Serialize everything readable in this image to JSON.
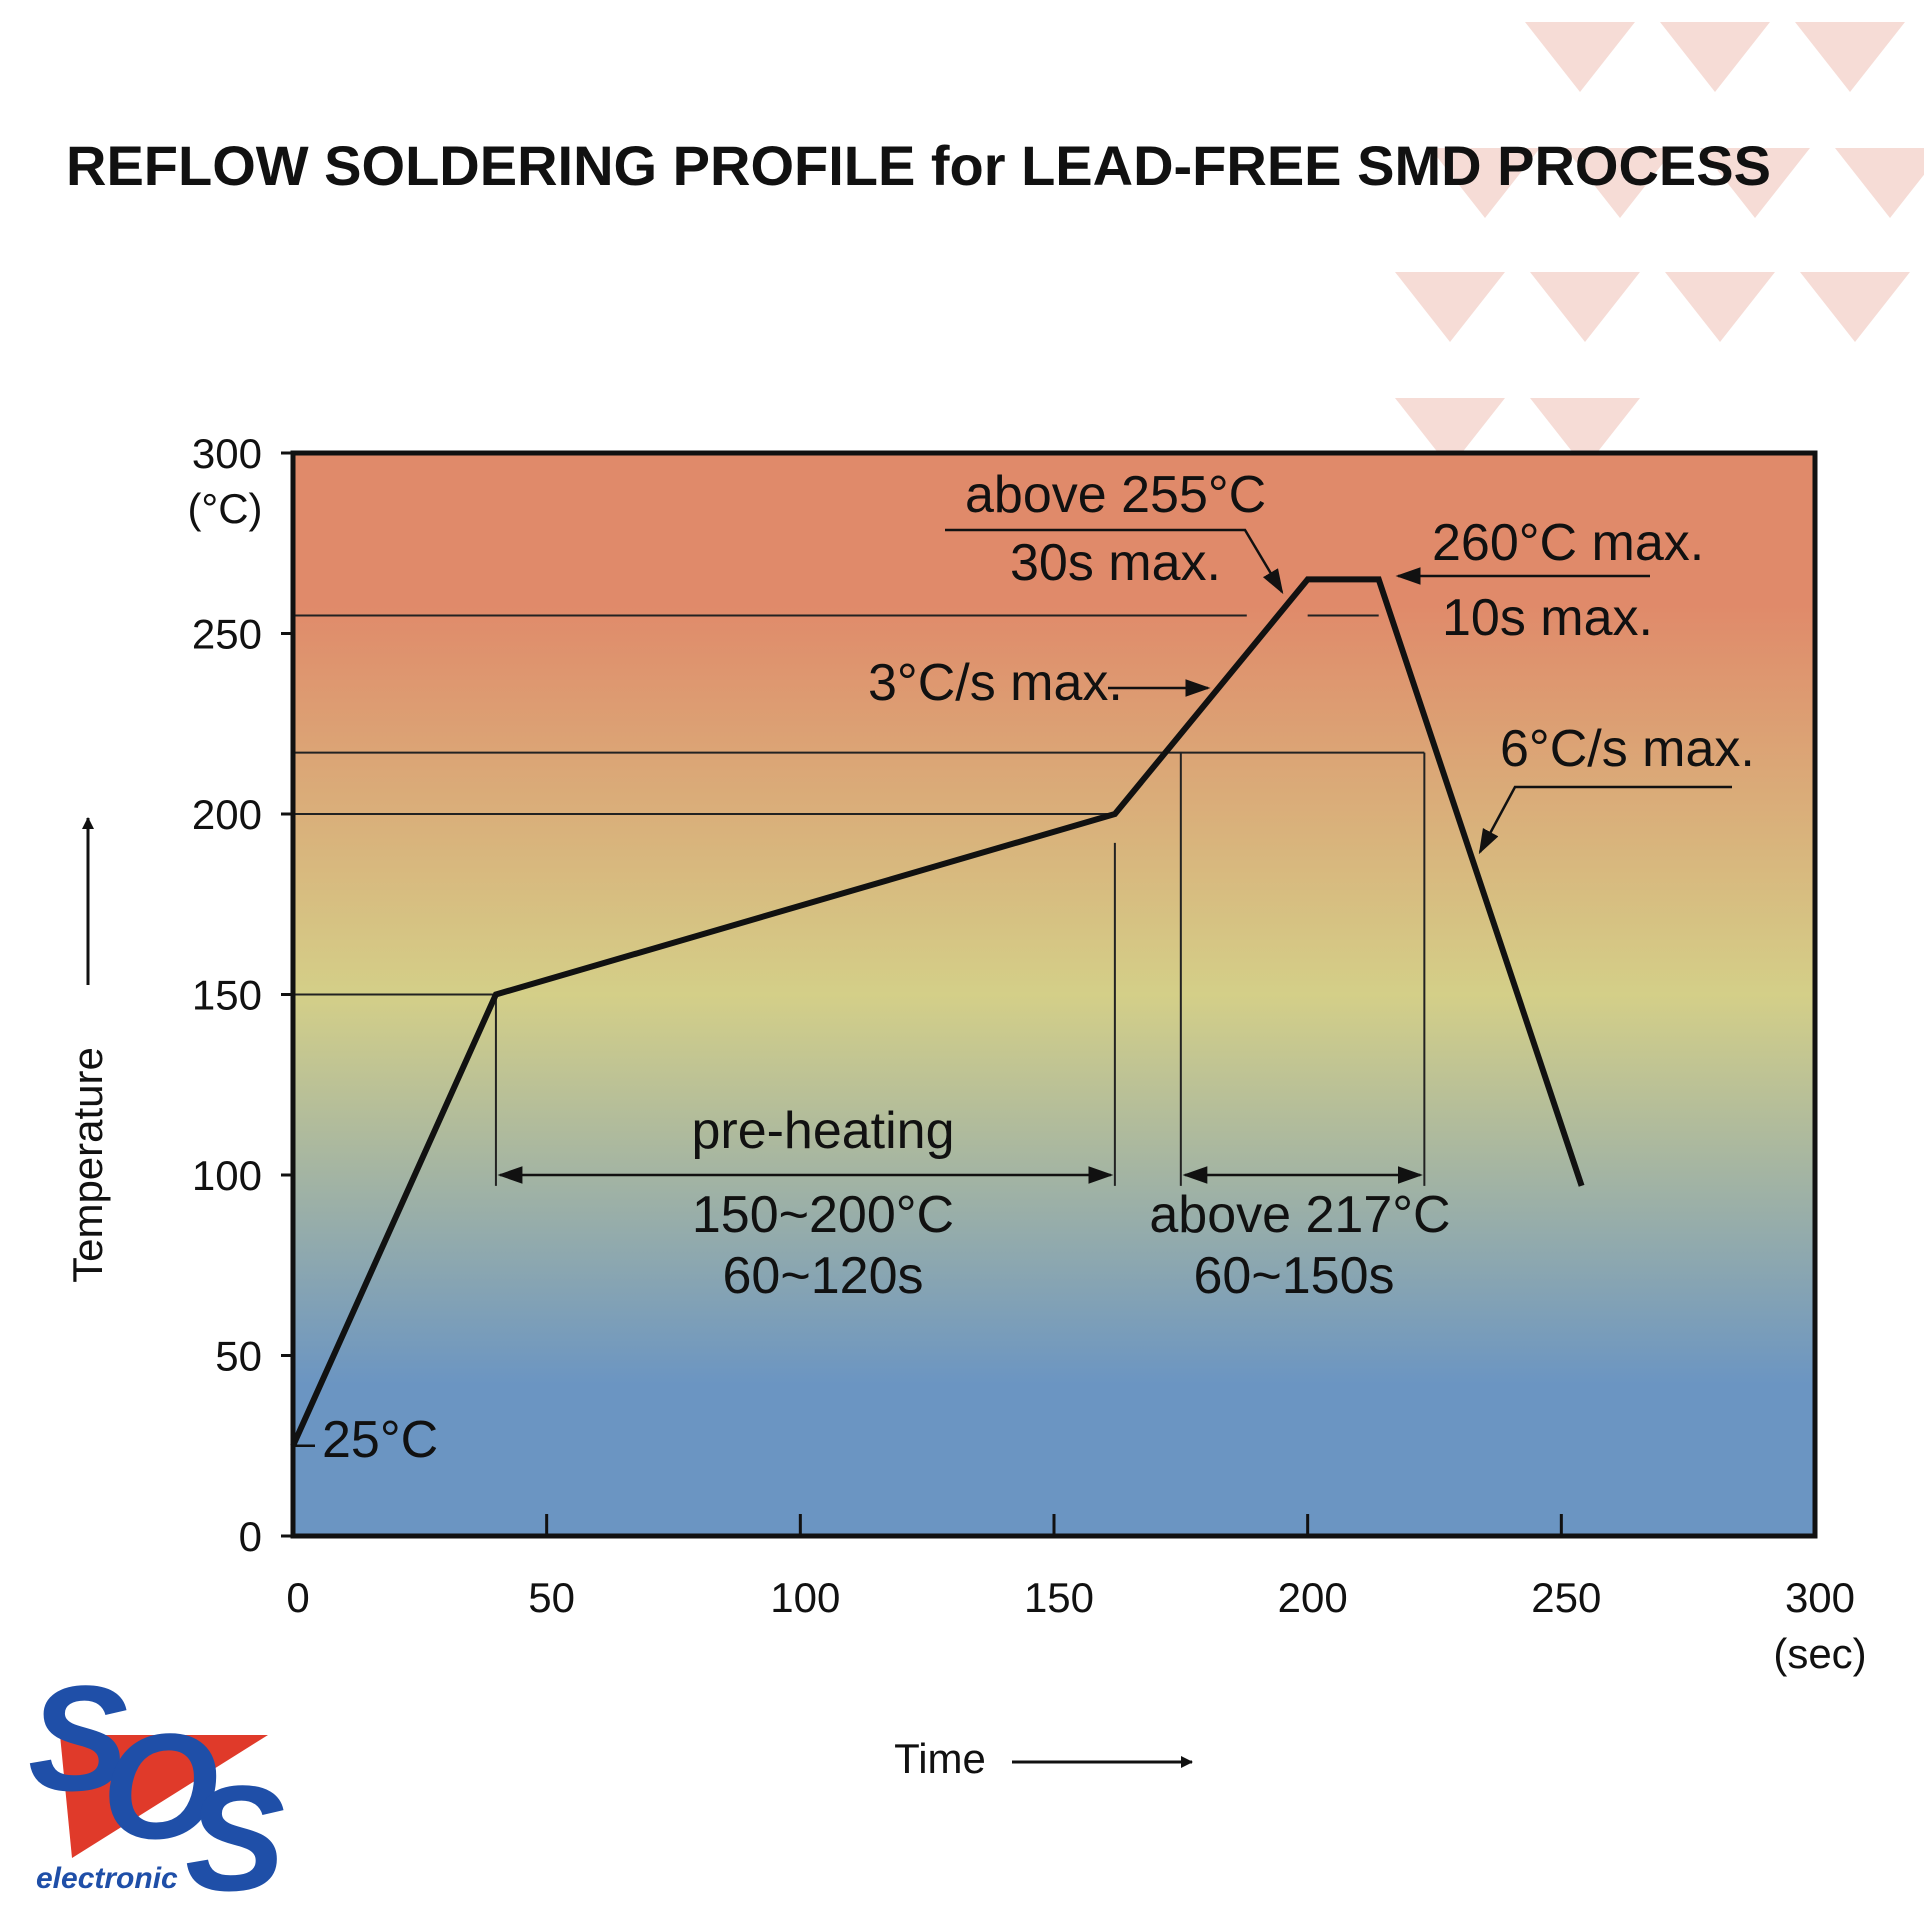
{
  "chart_data": {
    "type": "line",
    "title": "REFLOW SOLDERING PROFILE for LEAD-FREE SMD PROCESS",
    "xlabel": "Time",
    "ylabel": "Temperature",
    "x_unit": "(sec)",
    "y_unit": "(°C)",
    "xlim": [
      0,
      300
    ],
    "ylim": [
      0,
      300
    ],
    "x_ticks": [
      "0",
      "50",
      "100",
      "150",
      "200",
      "250",
      "300"
    ],
    "y_ticks": [
      "0",
      "50",
      "100",
      "150",
      "200",
      "250",
      "300"
    ],
    "grid": false,
    "series": [
      {
        "x": [
          0,
          40,
          162,
          200,
          214,
          254
        ],
        "y": [
          25,
          150,
          200,
          265,
          265,
          97
        ]
      }
    ],
    "reference_lines": [
      150,
      200,
      217,
      255
    ],
    "annotations": {
      "start_temp": "25°C",
      "preheat_title": "pre-heating",
      "preheat_range": "150~200°C",
      "preheat_time": "60~120s",
      "reflow_range": "above 217°C",
      "reflow_time": "60~150s",
      "ramp_up": "3°C/s max.",
      "peak_zone_temp": "above 255°C",
      "peak_zone_time": "30s max.",
      "peak_max_temp": "260°C max.",
      "peak_max_time": "10s max.",
      "ramp_down": "6°C/s max."
    },
    "colors": {
      "top": "#e08a6a",
      "middle": "#d4cf88",
      "bottom": "#6b95c2",
      "line": "#111111",
      "watermark": "#f3d0c8"
    }
  },
  "logo": {
    "text": "electronic",
    "colors": {
      "blue": "#1f4fa8",
      "red": "#e03a2a"
    }
  }
}
